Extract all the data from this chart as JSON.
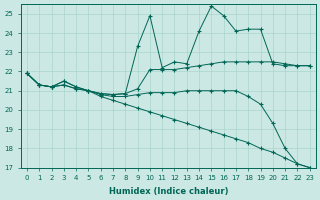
{
  "xlabel": "Humidex (Indice chaleur)",
  "bg_color": "#cce8e4",
  "grid_color": "#aad4ce",
  "line_color": "#006655",
  "xlim": [
    -0.5,
    23.5
  ],
  "ylim": [
    17,
    25.5
  ],
  "yticks": [
    17,
    18,
    19,
    20,
    21,
    22,
    23,
    24,
    25
  ],
  "xticks": [
    0,
    1,
    2,
    3,
    4,
    5,
    6,
    7,
    8,
    9,
    10,
    11,
    12,
    13,
    14,
    15,
    16,
    17,
    18,
    19,
    20,
    21,
    22,
    23
  ],
  "series": [
    {
      "x": [
        0,
        1,
        2,
        3,
        4,
        5,
        6,
        7,
        8,
        9,
        10,
        11,
        12,
        13,
        14,
        15,
        16,
        17,
        18,
        19,
        20,
        21,
        22,
        23
      ],
      "y": [
        21.9,
        21.3,
        21.2,
        21.5,
        21.2,
        21.0,
        20.85,
        20.8,
        20.85,
        23.3,
        24.9,
        22.2,
        22.5,
        22.4,
        24.1,
        25.4,
        24.9,
        24.1,
        24.2,
        24.2,
        22.4,
        22.3,
        22.3,
        22.3
      ]
    },
    {
      "x": [
        0,
        1,
        2,
        3,
        4,
        5,
        6,
        7,
        8,
        9,
        10,
        11,
        12,
        13,
        14,
        15,
        16,
        17,
        18,
        19,
        20,
        21,
        22,
        23
      ],
      "y": [
        21.9,
        21.3,
        21.2,
        21.5,
        21.2,
        21.0,
        20.85,
        20.8,
        20.85,
        21.1,
        22.1,
        22.1,
        22.1,
        22.2,
        22.3,
        22.4,
        22.5,
        22.5,
        22.5,
        22.5,
        22.5,
        22.4,
        22.3,
        22.3
      ]
    },
    {
      "x": [
        0,
        1,
        2,
        3,
        4,
        5,
        6,
        7,
        8,
        9,
        10,
        11,
        12,
        13,
        14,
        15,
        16,
        17,
        18,
        19,
        20,
        21,
        22,
        23
      ],
      "y": [
        21.9,
        21.3,
        21.2,
        21.3,
        21.1,
        21.0,
        20.8,
        20.7,
        20.7,
        20.8,
        20.9,
        20.9,
        20.9,
        21.0,
        21.0,
        21.0,
        21.0,
        21.0,
        20.7,
        20.3,
        19.3,
        18.0,
        17.2,
        17.0
      ]
    },
    {
      "x": [
        0,
        1,
        2,
        3,
        4,
        5,
        6,
        7,
        8,
        9,
        10,
        11,
        12,
        13,
        14,
        15,
        16,
        17,
        18,
        19,
        20,
        21,
        22,
        23
      ],
      "y": [
        21.9,
        21.3,
        21.2,
        21.3,
        21.1,
        21.0,
        20.7,
        20.5,
        20.3,
        20.1,
        19.9,
        19.7,
        19.5,
        19.3,
        19.1,
        18.9,
        18.7,
        18.5,
        18.3,
        18.0,
        17.8,
        17.5,
        17.2,
        17.0
      ]
    }
  ]
}
